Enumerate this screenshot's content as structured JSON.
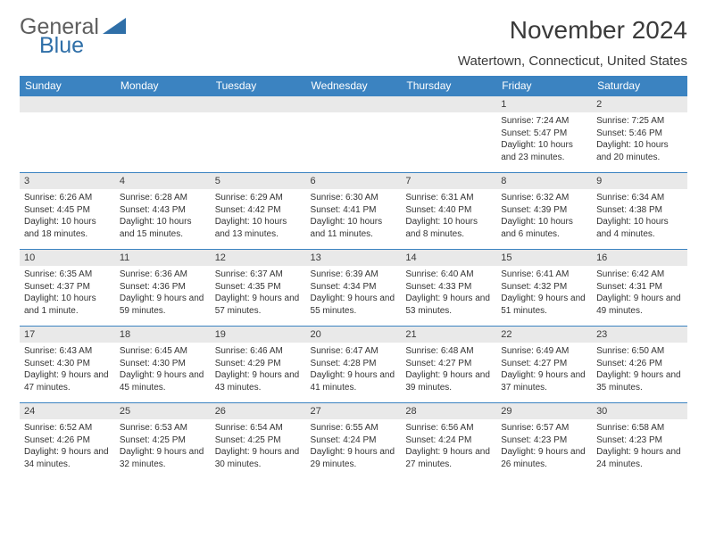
{
  "logo": {
    "word1": "General",
    "word2": "Blue",
    "color_gray": "#5e5e5e",
    "color_blue": "#2f6fa8",
    "triangle_color": "#2f6fa8"
  },
  "header": {
    "title": "November 2024",
    "location": "Watertown, Connecticut, United States"
  },
  "style": {
    "header_bg": "#3b83c1",
    "header_fg": "#ffffff",
    "daynum_bg": "#e9e9e9",
    "border_color": "#3b83c1",
    "body_font_size": 10,
    "header_font_size": 12,
    "title_font_size": 28,
    "location_font_size": 15
  },
  "columns": [
    "Sunday",
    "Monday",
    "Tuesday",
    "Wednesday",
    "Thursday",
    "Friday",
    "Saturday"
  ],
  "weeks": [
    [
      {
        "n": "",
        "sr": "",
        "ss": "",
        "dl": ""
      },
      {
        "n": "",
        "sr": "",
        "ss": "",
        "dl": ""
      },
      {
        "n": "",
        "sr": "",
        "ss": "",
        "dl": ""
      },
      {
        "n": "",
        "sr": "",
        "ss": "",
        "dl": ""
      },
      {
        "n": "",
        "sr": "",
        "ss": "",
        "dl": ""
      },
      {
        "n": "1",
        "sr": "Sunrise: 7:24 AM",
        "ss": "Sunset: 5:47 PM",
        "dl": "Daylight: 10 hours and 23 minutes."
      },
      {
        "n": "2",
        "sr": "Sunrise: 7:25 AM",
        "ss": "Sunset: 5:46 PM",
        "dl": "Daylight: 10 hours and 20 minutes."
      }
    ],
    [
      {
        "n": "3",
        "sr": "Sunrise: 6:26 AM",
        "ss": "Sunset: 4:45 PM",
        "dl": "Daylight: 10 hours and 18 minutes."
      },
      {
        "n": "4",
        "sr": "Sunrise: 6:28 AM",
        "ss": "Sunset: 4:43 PM",
        "dl": "Daylight: 10 hours and 15 minutes."
      },
      {
        "n": "5",
        "sr": "Sunrise: 6:29 AM",
        "ss": "Sunset: 4:42 PM",
        "dl": "Daylight: 10 hours and 13 minutes."
      },
      {
        "n": "6",
        "sr": "Sunrise: 6:30 AM",
        "ss": "Sunset: 4:41 PM",
        "dl": "Daylight: 10 hours and 11 minutes."
      },
      {
        "n": "7",
        "sr": "Sunrise: 6:31 AM",
        "ss": "Sunset: 4:40 PM",
        "dl": "Daylight: 10 hours and 8 minutes."
      },
      {
        "n": "8",
        "sr": "Sunrise: 6:32 AM",
        "ss": "Sunset: 4:39 PM",
        "dl": "Daylight: 10 hours and 6 minutes."
      },
      {
        "n": "9",
        "sr": "Sunrise: 6:34 AM",
        "ss": "Sunset: 4:38 PM",
        "dl": "Daylight: 10 hours and 4 minutes."
      }
    ],
    [
      {
        "n": "10",
        "sr": "Sunrise: 6:35 AM",
        "ss": "Sunset: 4:37 PM",
        "dl": "Daylight: 10 hours and 1 minute."
      },
      {
        "n": "11",
        "sr": "Sunrise: 6:36 AM",
        "ss": "Sunset: 4:36 PM",
        "dl": "Daylight: 9 hours and 59 minutes."
      },
      {
        "n": "12",
        "sr": "Sunrise: 6:37 AM",
        "ss": "Sunset: 4:35 PM",
        "dl": "Daylight: 9 hours and 57 minutes."
      },
      {
        "n": "13",
        "sr": "Sunrise: 6:39 AM",
        "ss": "Sunset: 4:34 PM",
        "dl": "Daylight: 9 hours and 55 minutes."
      },
      {
        "n": "14",
        "sr": "Sunrise: 6:40 AM",
        "ss": "Sunset: 4:33 PM",
        "dl": "Daylight: 9 hours and 53 minutes."
      },
      {
        "n": "15",
        "sr": "Sunrise: 6:41 AM",
        "ss": "Sunset: 4:32 PM",
        "dl": "Daylight: 9 hours and 51 minutes."
      },
      {
        "n": "16",
        "sr": "Sunrise: 6:42 AM",
        "ss": "Sunset: 4:31 PM",
        "dl": "Daylight: 9 hours and 49 minutes."
      }
    ],
    [
      {
        "n": "17",
        "sr": "Sunrise: 6:43 AM",
        "ss": "Sunset: 4:30 PM",
        "dl": "Daylight: 9 hours and 47 minutes."
      },
      {
        "n": "18",
        "sr": "Sunrise: 6:45 AM",
        "ss": "Sunset: 4:30 PM",
        "dl": "Daylight: 9 hours and 45 minutes."
      },
      {
        "n": "19",
        "sr": "Sunrise: 6:46 AM",
        "ss": "Sunset: 4:29 PM",
        "dl": "Daylight: 9 hours and 43 minutes."
      },
      {
        "n": "20",
        "sr": "Sunrise: 6:47 AM",
        "ss": "Sunset: 4:28 PM",
        "dl": "Daylight: 9 hours and 41 minutes."
      },
      {
        "n": "21",
        "sr": "Sunrise: 6:48 AM",
        "ss": "Sunset: 4:27 PM",
        "dl": "Daylight: 9 hours and 39 minutes."
      },
      {
        "n": "22",
        "sr": "Sunrise: 6:49 AM",
        "ss": "Sunset: 4:27 PM",
        "dl": "Daylight: 9 hours and 37 minutes."
      },
      {
        "n": "23",
        "sr": "Sunrise: 6:50 AM",
        "ss": "Sunset: 4:26 PM",
        "dl": "Daylight: 9 hours and 35 minutes."
      }
    ],
    [
      {
        "n": "24",
        "sr": "Sunrise: 6:52 AM",
        "ss": "Sunset: 4:26 PM",
        "dl": "Daylight: 9 hours and 34 minutes."
      },
      {
        "n": "25",
        "sr": "Sunrise: 6:53 AM",
        "ss": "Sunset: 4:25 PM",
        "dl": "Daylight: 9 hours and 32 minutes."
      },
      {
        "n": "26",
        "sr": "Sunrise: 6:54 AM",
        "ss": "Sunset: 4:25 PM",
        "dl": "Daylight: 9 hours and 30 minutes."
      },
      {
        "n": "27",
        "sr": "Sunrise: 6:55 AM",
        "ss": "Sunset: 4:24 PM",
        "dl": "Daylight: 9 hours and 29 minutes."
      },
      {
        "n": "28",
        "sr": "Sunrise: 6:56 AM",
        "ss": "Sunset: 4:24 PM",
        "dl": "Daylight: 9 hours and 27 minutes."
      },
      {
        "n": "29",
        "sr": "Sunrise: 6:57 AM",
        "ss": "Sunset: 4:23 PM",
        "dl": "Daylight: 9 hours and 26 minutes."
      },
      {
        "n": "30",
        "sr": "Sunrise: 6:58 AM",
        "ss": "Sunset: 4:23 PM",
        "dl": "Daylight: 9 hours and 24 minutes."
      }
    ]
  ]
}
